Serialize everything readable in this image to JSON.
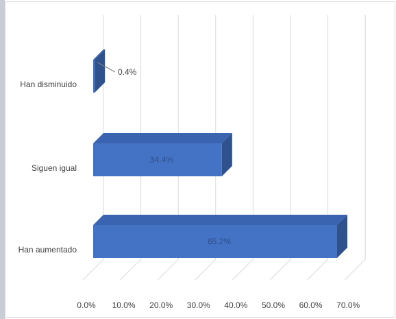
{
  "chart_data": {
    "type": "bar",
    "orientation": "horizontal",
    "style": "3d",
    "categories": [
      "Han disminuido",
      "Siguen igual",
      "Han aumentado"
    ],
    "values": [
      0.4,
      34.4,
      65.2
    ],
    "data_labels": [
      "0.4%",
      "34.4%",
      "65.2%"
    ],
    "xlim": [
      0,
      70
    ],
    "xticks": [
      "0.0%",
      "10.0%",
      "20.0%",
      "30.0%",
      "40.0%",
      "50.0%",
      "60.0%",
      "70.0%"
    ],
    "grid": true,
    "legend": "none",
    "colors": {
      "bar_front": "#4472c4",
      "bar_top": "#3a64b0",
      "bar_side": "#2f528f",
      "gridline": "#d9d9d9",
      "frame_border": "#d9d9d9",
      "left_strip": "#c8ccd4"
    }
  }
}
